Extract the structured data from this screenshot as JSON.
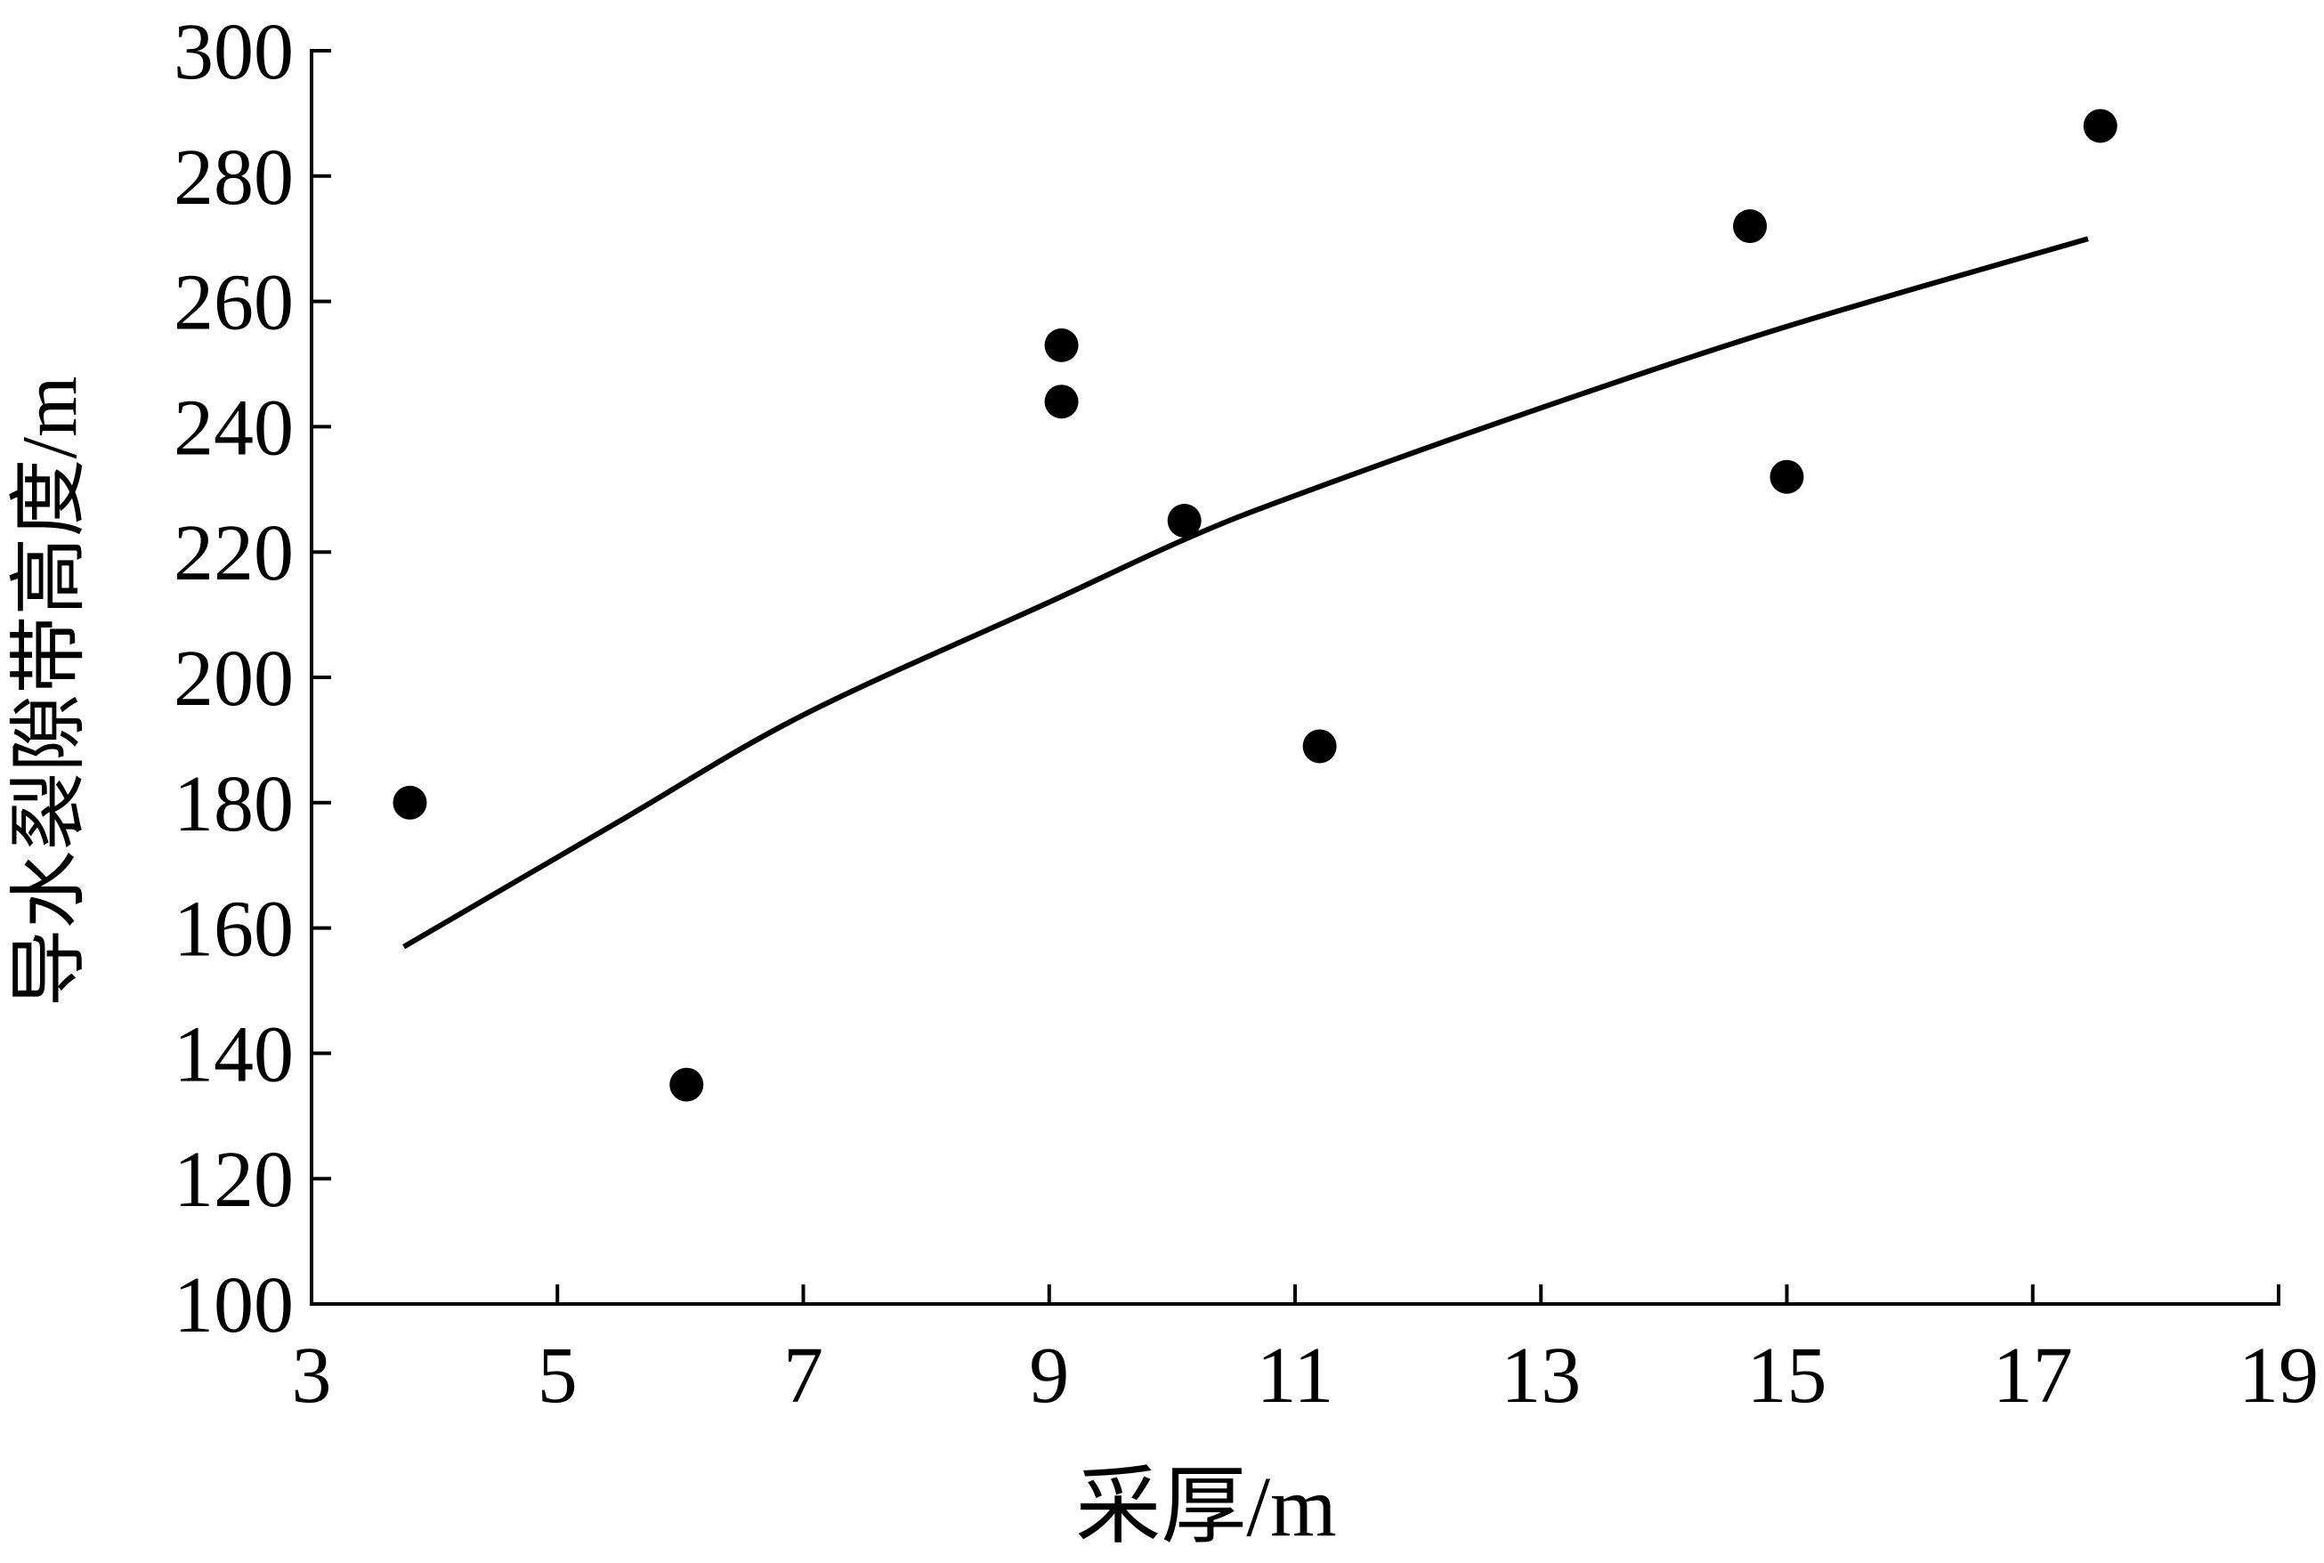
{
  "chart_data": {
    "type": "scatter",
    "title": "",
    "xlabel": "采厚/m",
    "ylabel": "导水裂隙带高度/m",
    "xlim": [
      3,
      19
    ],
    "ylim": [
      100,
      300
    ],
    "xticks": [
      3,
      5,
      7,
      9,
      11,
      13,
      15,
      17,
      19
    ],
    "yticks": [
      100,
      120,
      140,
      160,
      180,
      200,
      220,
      240,
      260,
      280,
      300
    ],
    "grid": false,
    "legend": "none",
    "series": [
      {
        "type": "scatter",
        "points": [
          {
            "x": 3.8,
            "y": 180
          },
          {
            "x": 6.05,
            "y": 135
          },
          {
            "x": 9.1,
            "y": 253
          },
          {
            "x": 9.1,
            "y": 244
          },
          {
            "x": 10.1,
            "y": 225
          },
          {
            "x": 11.2,
            "y": 189
          },
          {
            "x": 14.7,
            "y": 272
          },
          {
            "x": 15.0,
            "y": 232
          },
          {
            "x": 17.55,
            "y": 288
          }
        ]
      },
      {
        "type": "line",
        "points": [
          {
            "x": 3.75,
            "y": 157
          },
          {
            "x": 5.5,
            "y": 177
          },
          {
            "x": 7.0,
            "y": 194
          },
          {
            "x": 9.0,
            "y": 212
          },
          {
            "x": 10.1,
            "y": 222
          },
          {
            "x": 11.0,
            "y": 229
          },
          {
            "x": 13.0,
            "y": 243
          },
          {
            "x": 15.0,
            "y": 256
          },
          {
            "x": 17.45,
            "y": 270
          }
        ]
      }
    ],
    "colors": {
      "marker": "#000000",
      "line": "#000000",
      "axis": "#000000"
    }
  }
}
